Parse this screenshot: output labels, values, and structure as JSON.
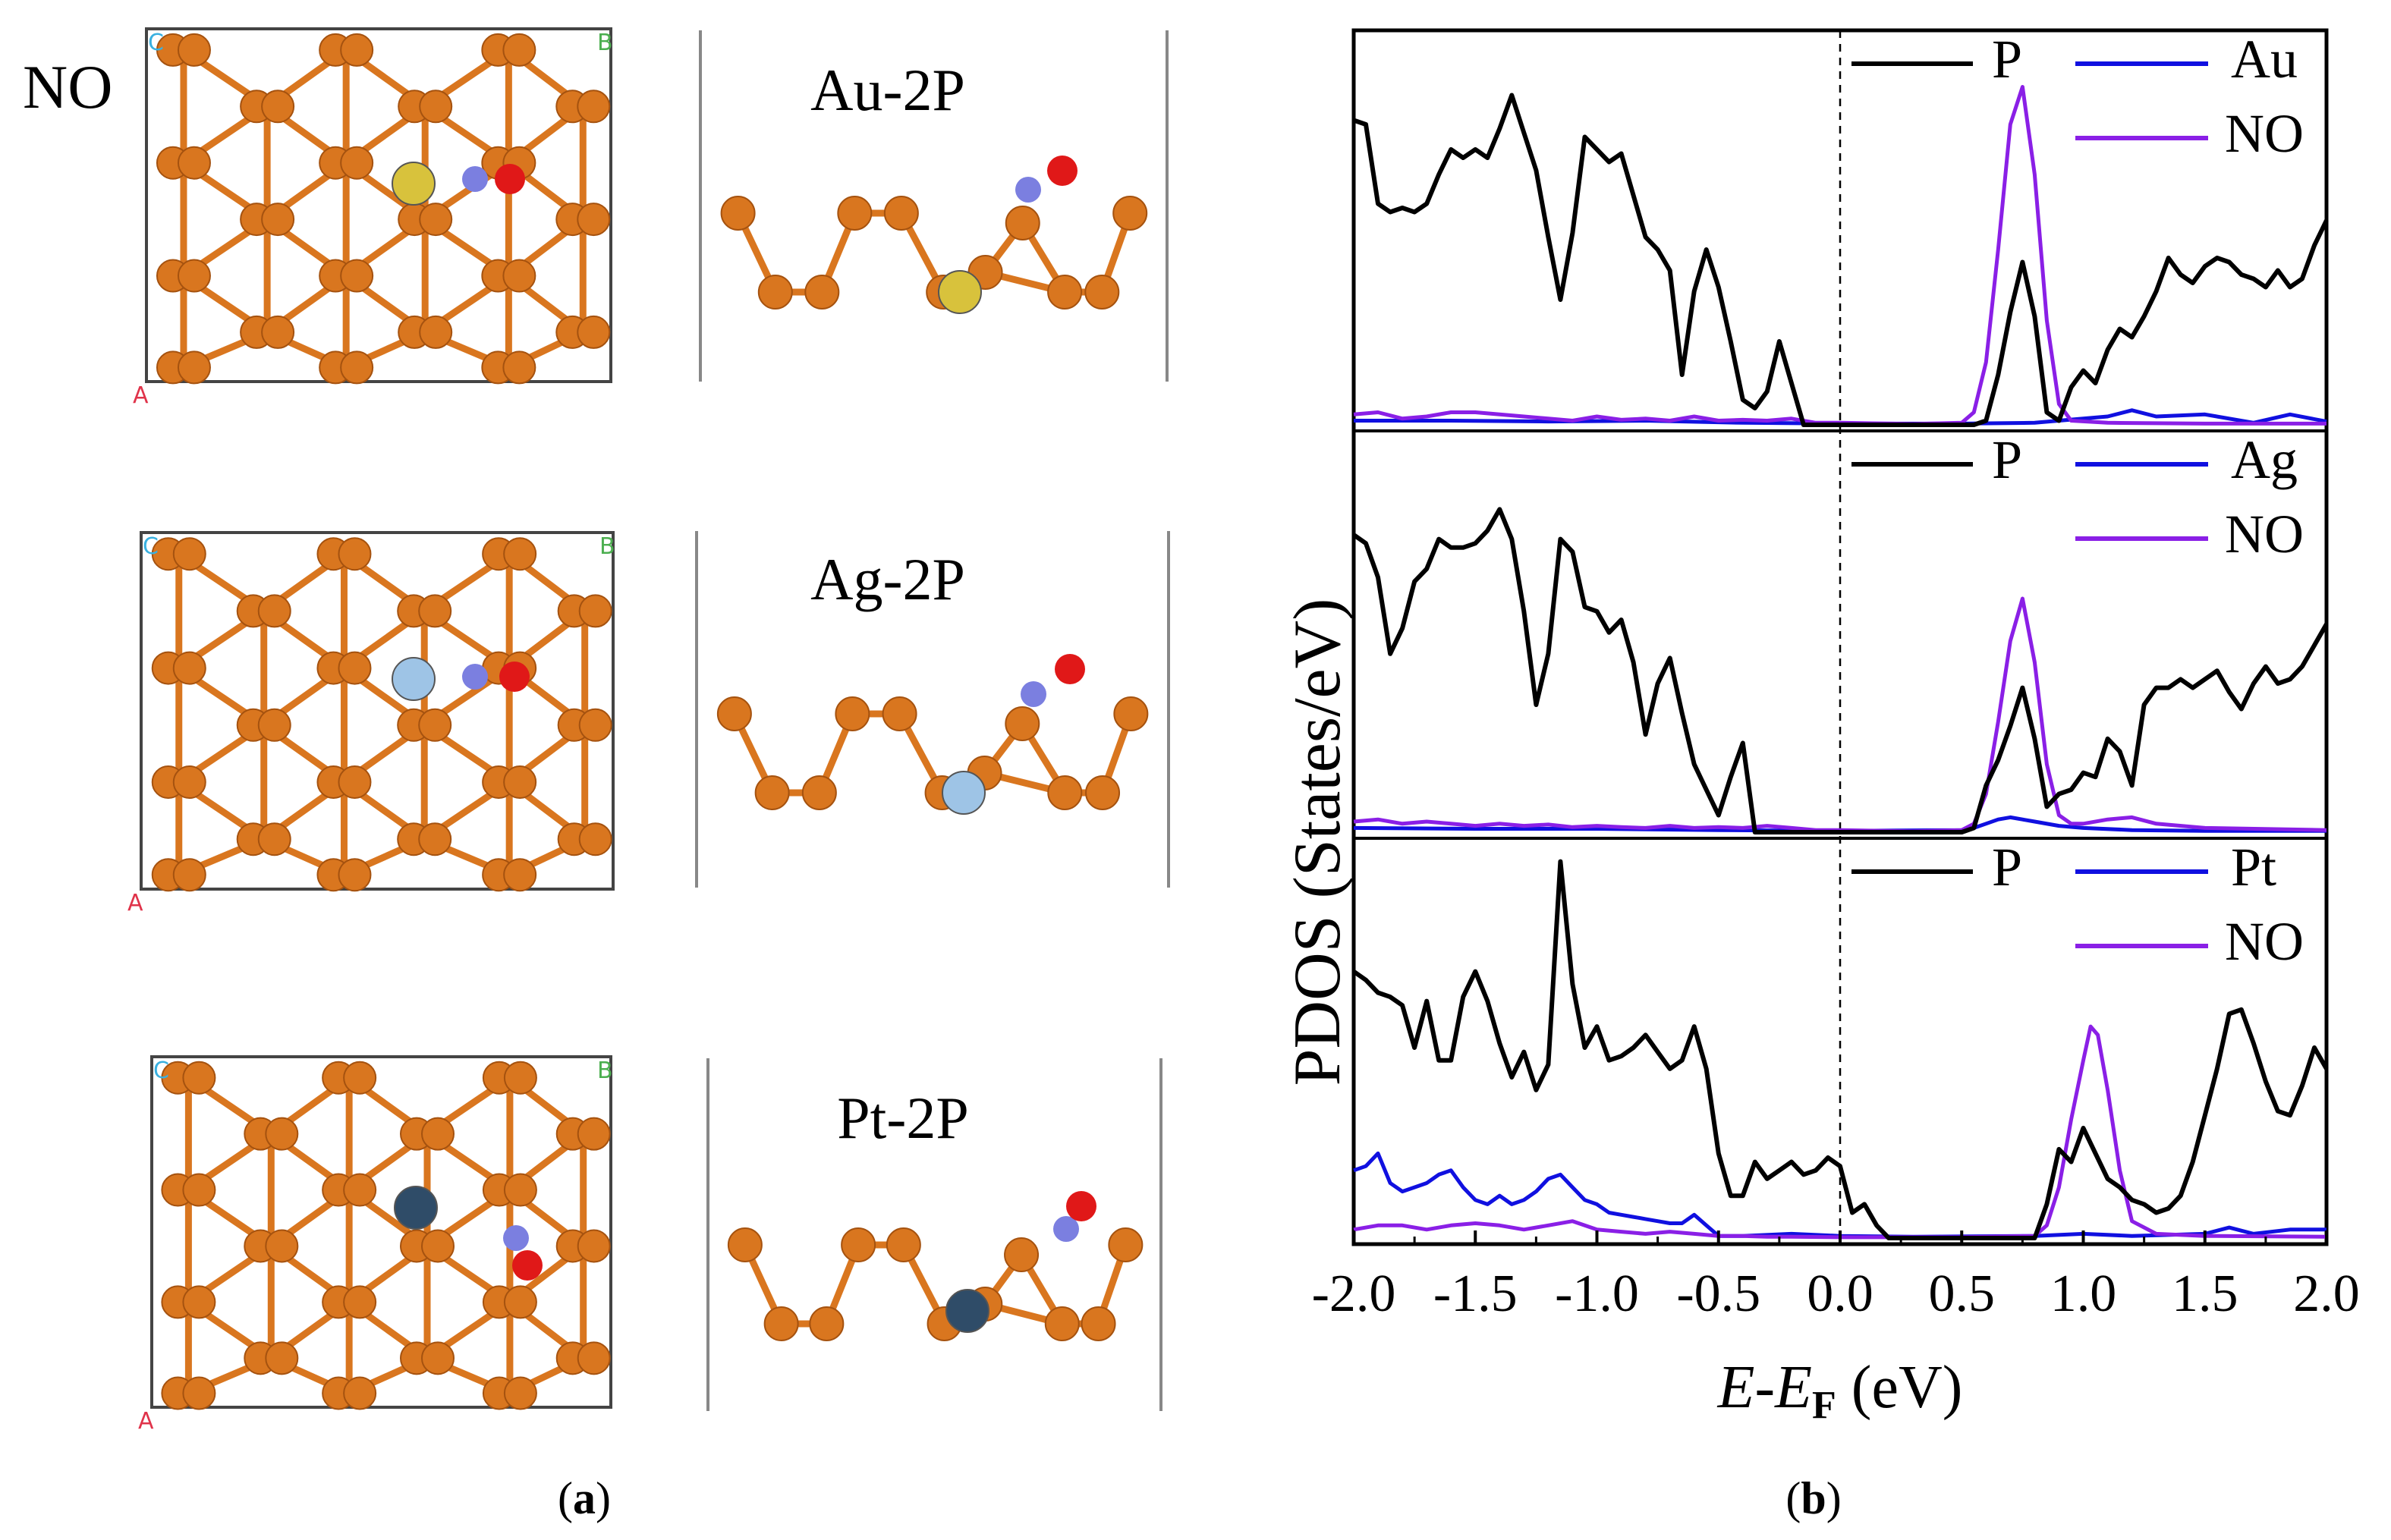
{
  "panel_a": {
    "adsorbate_label": "NO",
    "structures": [
      {
        "name": "Au-2P",
        "dopant": "Au",
        "dopant_color": "#d8c23c"
      },
      {
        "name": "Ag-2P",
        "dopant": "Ag",
        "dopant_color": "#9ec4e6"
      },
      {
        "name": "Pt-2P",
        "dopant": "Pt",
        "dopant_color": "#2f4c68"
      }
    ],
    "axis_letters": {
      "a": "A",
      "b": "B",
      "c": "C"
    },
    "colors": {
      "phosphorus": "#d9761f",
      "nitrogen": "#7b7fe0",
      "oxygen": "#e01818"
    }
  },
  "chart_data": {
    "type": "line",
    "ylabel": "PDOS (States/eV)",
    "xlabel": {
      "prefix": "E",
      "dash": "-",
      "mid": "E",
      "sub": "F",
      "unit": " (eV)"
    },
    "xlim": [
      -2.0,
      2.0
    ],
    "xticks": [
      "-2.0",
      "-1.5",
      "-1.0",
      "-0.5",
      "0.0",
      "0.5",
      "1.0",
      "1.5",
      "2.0"
    ],
    "fermi_line_at": 0.0,
    "colors": {
      "P": "#000000",
      "metal": "#1010e0",
      "NO": "#8a1fe6"
    },
    "panels": [
      {
        "id": "Au",
        "legend": [
          "P",
          "Au",
          "NO"
        ],
        "ylim": [
          0,
          9.0
        ],
        "series": [
          {
            "name": "P",
            "x": [
              -2.0,
              -1.95,
              -1.9,
              -1.85,
              -1.8,
              -1.75,
              -1.7,
              -1.65,
              -1.6,
              -1.55,
              -1.5,
              -1.45,
              -1.4,
              -1.35,
              -1.3,
              -1.25,
              -1.2,
              -1.15,
              -1.1,
              -1.05,
              -1.0,
              -0.95,
              -0.9,
              -0.85,
              -0.8,
              -0.75,
              -0.7,
              -0.65,
              -0.6,
              -0.55,
              -0.5,
              -0.45,
              -0.4,
              -0.35,
              -0.3,
              -0.25,
              -0.2,
              -0.15,
              0.5,
              0.55,
              0.6,
              0.65,
              0.7,
              0.75,
              0.8,
              0.85,
              0.9,
              0.95,
              1.0,
              1.05,
              1.1,
              1.15,
              1.2,
              1.25,
              1.3,
              1.35,
              1.4,
              1.45,
              1.5,
              1.55,
              1.6,
              1.65,
              1.7,
              1.75,
              1.8,
              1.85,
              1.9,
              1.95,
              2.0
            ],
            "y": [
              7.3,
              7.2,
              5.3,
              5.1,
              5.2,
              5.1,
              5.3,
              6.0,
              6.6,
              6.4,
              6.6,
              6.4,
              7.1,
              7.9,
              7.0,
              6.1,
              4.5,
              3.0,
              4.6,
              6.9,
              6.6,
              6.3,
              6.5,
              5.5,
              4.5,
              4.2,
              3.7,
              1.2,
              3.2,
              4.2,
              3.3,
              2.0,
              0.6,
              0.4,
              0.8,
              2.0,
              1.0,
              0.0,
              0.0,
              0.0,
              0.1,
              1.2,
              2.7,
              3.9,
              2.6,
              0.3,
              0.1,
              0.9,
              1.3,
              1.0,
              1.8,
              2.3,
              2.1,
              2.6,
              3.2,
              4.0,
              3.6,
              3.4,
              3.8,
              4.0,
              3.9,
              3.6,
              3.5,
              3.3,
              3.7,
              3.3,
              3.5,
              4.3,
              4.9
            ]
          },
          {
            "name": "metal",
            "x": [
              -2.0,
              -1.6,
              -1.2,
              -0.8,
              -0.4,
              0.0,
              0.5,
              0.8,
              1.0,
              1.1,
              1.2,
              1.3,
              1.5,
              1.7,
              1.85,
              2.0
            ],
            "y": [
              0.1,
              0.1,
              0.08,
              0.1,
              0.05,
              0.03,
              0.03,
              0.05,
              0.15,
              0.2,
              0.35,
              0.2,
              0.25,
              0.05,
              0.25,
              0.08
            ]
          },
          {
            "name": "NO",
            "x": [
              -2.0,
              -1.9,
              -1.8,
              -1.7,
              -1.6,
              -1.5,
              -1.4,
              -1.3,
              -1.2,
              -1.1,
              -1.0,
              -0.9,
              -0.8,
              -0.7,
              -0.6,
              -0.5,
              -0.4,
              -0.3,
              -0.2,
              -0.1,
              0.0,
              0.3,
              0.5,
              0.55,
              0.6,
              0.65,
              0.7,
              0.75,
              0.8,
              0.85,
              0.9,
              0.95,
              1.1,
              1.5,
              2.0
            ],
            "y": [
              0.25,
              0.3,
              0.15,
              0.2,
              0.3,
              0.3,
              0.25,
              0.2,
              0.15,
              0.1,
              0.2,
              0.12,
              0.15,
              0.1,
              0.2,
              0.1,
              0.12,
              0.1,
              0.15,
              0.05,
              0.05,
              0.02,
              0.05,
              0.3,
              1.5,
              4.2,
              7.2,
              8.1,
              6.0,
              2.5,
              0.5,
              0.1,
              0.05,
              0.03,
              0.03
            ]
          }
        ]
      },
      {
        "id": "Ag",
        "legend": [
          "P",
          "Ag",
          "NO"
        ],
        "ylim": [
          0,
          9.0
        ],
        "series": [
          {
            "name": "P",
            "x": [
              -2.0,
              -1.95,
              -1.9,
              -1.85,
              -1.8,
              -1.75,
              -1.7,
              -1.65,
              -1.6,
              -1.55,
              -1.5,
              -1.45,
              -1.4,
              -1.35,
              -1.3,
              -1.25,
              -1.2,
              -1.15,
              -1.1,
              -1.05,
              -1.0,
              -0.95,
              -0.9,
              -0.85,
              -0.8,
              -0.75,
              -0.7,
              -0.65,
              -0.6,
              -0.55,
              -0.5,
              -0.45,
              -0.4,
              -0.35,
              -0.3,
              -0.25,
              -0.2,
              -0.15,
              0.5,
              0.55,
              0.6,
              0.65,
              0.7,
              0.75,
              0.8,
              0.85,
              0.9,
              0.95,
              1.0,
              1.05,
              1.1,
              1.15,
              1.2,
              1.25,
              1.3,
              1.35,
              1.4,
              1.45,
              1.5,
              1.55,
              1.6,
              1.65,
              1.7,
              1.75,
              1.8,
              1.85,
              1.9,
              1.95,
              2.0
            ],
            "y": [
              7.0,
              6.8,
              6.0,
              4.2,
              4.8,
              5.9,
              6.2,
              6.9,
              6.7,
              6.7,
              6.8,
              7.1,
              7.6,
              6.9,
              5.2,
              3.0,
              4.2,
              6.9,
              6.6,
              5.3,
              5.2,
              4.7,
              5.0,
              4.0,
              2.3,
              3.5,
              4.1,
              2.8,
              1.6,
              1.0,
              0.4,
              1.3,
              2.1,
              0.0,
              0.0,
              0.0,
              0.0,
              0.0,
              0.0,
              0.1,
              1.1,
              1.7,
              2.5,
              3.4,
              2.2,
              0.6,
              0.9,
              1.0,
              1.4,
              1.3,
              2.2,
              1.9,
              1.1,
              3.0,
              3.4,
              3.4,
              3.6,
              3.4,
              3.6,
              3.8,
              3.3,
              2.9,
              3.5,
              3.9,
              3.5,
              3.6,
              3.9,
              4.4,
              4.9
            ]
          },
          {
            "name": "metal",
            "x": [
              -2.0,
              -1.5,
              -1.0,
              -0.5,
              0.0,
              0.5,
              0.55,
              0.6,
              0.65,
              0.7,
              0.75,
              0.8,
              0.9,
              1.0,
              1.2,
              1.5,
              2.0
            ],
            "y": [
              0.1,
              0.08,
              0.08,
              0.05,
              0.03,
              0.05,
              0.1,
              0.2,
              0.3,
              0.35,
              0.3,
              0.25,
              0.15,
              0.1,
              0.05,
              0.03,
              0.03
            ]
          },
          {
            "name": "NO",
            "x": [
              -2.0,
              -1.9,
              -1.8,
              -1.7,
              -1.6,
              -1.5,
              -1.4,
              -1.3,
              -1.2,
              -1.1,
              -1.0,
              -0.9,
              -0.8,
              -0.7,
              -0.6,
              -0.5,
              -0.4,
              -0.3,
              -0.2,
              -0.1,
              0.0,
              0.3,
              0.5,
              0.55,
              0.6,
              0.65,
              0.7,
              0.75,
              0.8,
              0.85,
              0.9,
              0.95,
              1.0,
              1.1,
              1.2,
              1.3,
              1.5,
              2.0
            ],
            "y": [
              0.25,
              0.3,
              0.2,
              0.25,
              0.2,
              0.15,
              0.2,
              0.15,
              0.18,
              0.12,
              0.15,
              0.12,
              0.1,
              0.15,
              0.1,
              0.12,
              0.1,
              0.15,
              0.1,
              0.05,
              0.05,
              0.02,
              0.05,
              0.2,
              0.9,
              2.6,
              4.5,
              5.5,
              4.0,
              1.6,
              0.4,
              0.2,
              0.2,
              0.3,
              0.35,
              0.2,
              0.1,
              0.05
            ]
          }
        ]
      },
      {
        "id": "Pt",
        "legend": [
          "P",
          "Pt",
          "NO"
        ],
        "ylim": [
          0,
          9.0
        ],
        "series": [
          {
            "name": "P",
            "x": [
              -2.0,
              -1.95,
              -1.9,
              -1.85,
              -1.8,
              -1.75,
              -1.7,
              -1.65,
              -1.6,
              -1.55,
              -1.5,
              -1.45,
              -1.4,
              -1.35,
              -1.3,
              -1.25,
              -1.2,
              -1.15,
              -1.1,
              -1.05,
              -1.0,
              -0.95,
              -0.9,
              -0.85,
              -0.8,
              -0.75,
              -0.7,
              -0.65,
              -0.6,
              -0.55,
              -0.5,
              -0.45,
              -0.4,
              -0.35,
              -0.3,
              -0.25,
              -0.2,
              -0.15,
              -0.1,
              -0.05,
              0.0,
              0.05,
              0.1,
              0.15,
              0.2,
              0.25,
              0.8,
              0.85,
              0.9,
              0.95,
              1.0,
              1.05,
              1.1,
              1.15,
              1.2,
              1.25,
              1.3,
              1.35,
              1.4,
              1.45,
              1.5,
              1.55,
              1.6,
              1.65,
              1.7,
              1.75,
              1.8,
              1.85,
              1.9,
              1.95,
              2.0
            ],
            "y": [
              6.3,
              6.1,
              5.8,
              5.7,
              5.5,
              4.5,
              5.6,
              4.2,
              4.2,
              5.7,
              6.3,
              5.6,
              4.6,
              3.8,
              4.4,
              3.5,
              4.1,
              8.9,
              6.0,
              4.5,
              5.0,
              4.2,
              4.3,
              4.5,
              4.8,
              4.4,
              4.0,
              4.2,
              5.0,
              4.0,
              2.0,
              1.0,
              1.0,
              1.8,
              1.4,
              1.6,
              1.8,
              1.5,
              1.6,
              1.9,
              1.7,
              0.6,
              0.8,
              0.3,
              0.0,
              0.0,
              0.0,
              0.8,
              2.1,
              1.8,
              2.6,
              2.0,
              1.4,
              1.2,
              0.9,
              0.8,
              0.6,
              0.7,
              1.0,
              1.8,
              2.9,
              4.0,
              5.3,
              5.4,
              4.6,
              3.7,
              3.0,
              2.9,
              3.6,
              4.5,
              4.0
            ]
          },
          {
            "name": "metal",
            "x": [
              -2.0,
              -1.95,
              -1.9,
              -1.85,
              -1.8,
              -1.75,
              -1.7,
              -1.65,
              -1.6,
              -1.55,
              -1.5,
              -1.45,
              -1.4,
              -1.35,
              -1.3,
              -1.25,
              -1.2,
              -1.15,
              -1.1,
              -1.05,
              -1.0,
              -0.95,
              -0.9,
              -0.85,
              -0.8,
              -0.75,
              -0.7,
              -0.65,
              -0.6,
              -0.55,
              -0.5,
              -0.4,
              -0.2,
              0.0,
              0.3,
              0.8,
              1.0,
              1.2,
              1.5,
              1.6,
              1.7,
              1.85,
              2.0
            ],
            "y": [
              1.6,
              1.7,
              2.0,
              1.3,
              1.1,
              1.2,
              1.3,
              1.5,
              1.6,
              1.2,
              0.9,
              0.8,
              1.0,
              0.8,
              0.9,
              1.1,
              1.4,
              1.5,
              1.2,
              0.9,
              0.8,
              0.6,
              0.55,
              0.5,
              0.45,
              0.4,
              0.35,
              0.35,
              0.55,
              0.3,
              0.05,
              0.05,
              0.1,
              0.05,
              0.03,
              0.05,
              0.1,
              0.05,
              0.1,
              0.25,
              0.1,
              0.2,
              0.2
            ]
          },
          {
            "name": "NO",
            "x": [
              -2.0,
              -1.9,
              -1.8,
              -1.7,
              -1.6,
              -1.5,
              -1.4,
              -1.3,
              -1.2,
              -1.1,
              -1.0,
              -0.9,
              -0.8,
              -0.7,
              -0.6,
              -0.5,
              -0.4,
              -0.3,
              -0.2,
              0.0,
              0.5,
              0.8,
              0.85,
              0.9,
              0.95,
              1.0,
              1.03,
              1.06,
              1.1,
              1.15,
              1.2,
              1.3,
              1.5,
              2.0
            ],
            "y": [
              0.2,
              0.3,
              0.3,
              0.2,
              0.3,
              0.35,
              0.3,
              0.2,
              0.3,
              0.4,
              0.2,
              0.15,
              0.1,
              0.15,
              0.1,
              0.05,
              0.05,
              0.03,
              0.03,
              0.02,
              0.02,
              0.05,
              0.3,
              1.2,
              2.8,
              4.2,
              5.0,
              4.8,
              3.5,
              1.6,
              0.4,
              0.1,
              0.05,
              0.03
            ]
          }
        ]
      }
    ]
  },
  "captions": {
    "a_letter": "a",
    "b_letter": "b",
    "open": "(",
    "close": ")"
  }
}
